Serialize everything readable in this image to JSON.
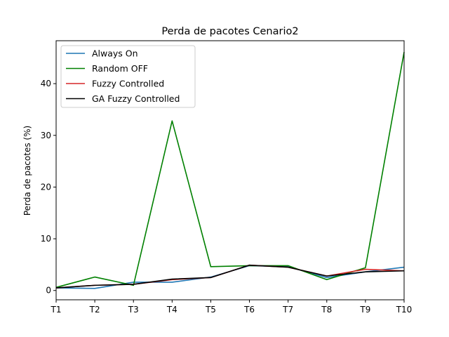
{
  "chart_data": {
    "type": "line",
    "title": "Perda de pacotes Cenario2",
    "xlabel": "",
    "ylabel": "Perda de pacotes (%)",
    "categories": [
      "T1",
      "T2",
      "T3",
      "T4",
      "T5",
      "T6",
      "T7",
      "T8",
      "T9",
      "T10"
    ],
    "ylim": [
      -1.8,
      48.3
    ],
    "yticks": [
      0,
      10,
      20,
      30,
      40
    ],
    "grid": false,
    "legend": "top-left",
    "series": [
      {
        "name": "Always On",
        "color": "#1f77b4",
        "values": [
          0.5,
          0.4,
          1.6,
          1.6,
          2.6,
          4.8,
          4.6,
          2.5,
          3.6,
          4.5
        ]
      },
      {
        "name": "Random OFF",
        "color": "#008000",
        "values": [
          0.6,
          2.6,
          1.0,
          32.8,
          4.6,
          4.8,
          4.8,
          2.1,
          4.4,
          46.1
        ]
      },
      {
        "name": "Fuzzy Controlled",
        "color": "#d62728",
        "values": [
          0.5,
          1.0,
          1.2,
          2.1,
          2.5,
          4.9,
          4.5,
          2.8,
          4.1,
          3.8
        ]
      },
      {
        "name": "GA Fuzzy Controlled",
        "color": "#000000",
        "values": [
          0.5,
          1.0,
          1.2,
          2.2,
          2.5,
          4.9,
          4.5,
          2.8,
          3.6,
          3.8
        ]
      }
    ]
  }
}
